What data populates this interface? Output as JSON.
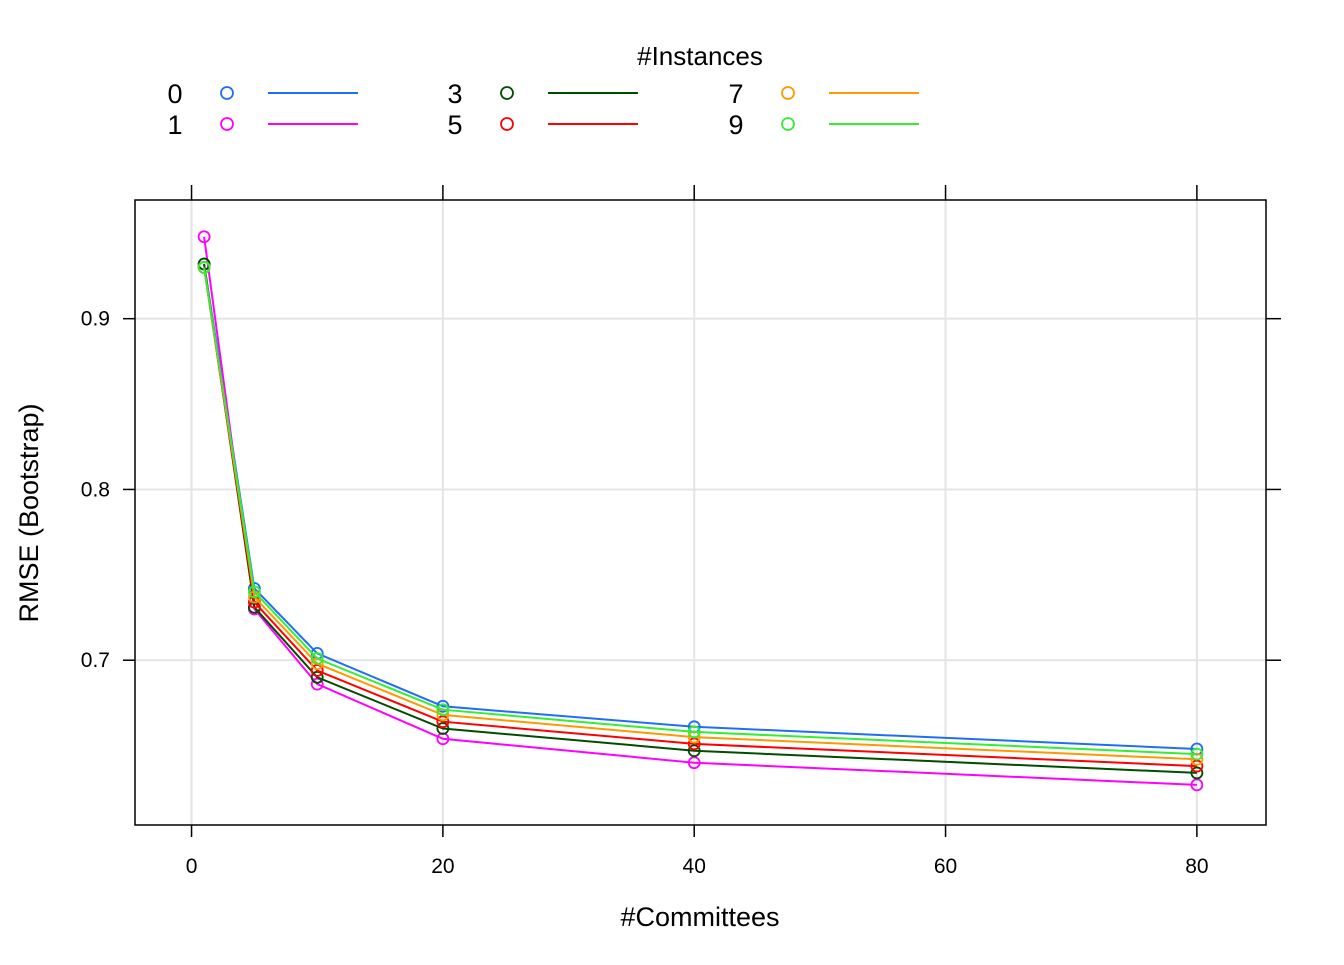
{
  "chart_data": {
    "type": "line",
    "title": "",
    "xlabel": "#Committees",
    "ylabel": "RMSE (Bootstrap)",
    "legend_title": "#Instances",
    "legend_position": "top",
    "grid": true,
    "xlim": [
      -4.5,
      85.5
    ],
    "ylim": [
      0.6035,
      0.9695
    ],
    "x_ticks": [
      0,
      20,
      40,
      60,
      80
    ],
    "x_tick_labels": [
      "0",
      "20",
      "40",
      "60",
      "80"
    ],
    "y_ticks": [
      0.7,
      0.8,
      0.9
    ],
    "y_tick_labels": [
      "0.7",
      "0.8",
      "0.9"
    ],
    "x": [
      1,
      5,
      10,
      20,
      40,
      80
    ],
    "series": [
      {
        "name": "0",
        "color": "#1f6ef5",
        "values": [
          0.932,
          0.742,
          0.704,
          0.673,
          0.661,
          0.648
        ]
      },
      {
        "name": "1",
        "color": "#ff00ff",
        "values": [
          0.948,
          0.73,
          0.686,
          0.654,
          0.64,
          0.627
        ]
      },
      {
        "name": "3",
        "color": "#004d00",
        "values": [
          0.932,
          0.731,
          0.69,
          0.66,
          0.647,
          0.634
        ]
      },
      {
        "name": "5",
        "color": "#ff0000",
        "values": [
          0.93,
          0.734,
          0.694,
          0.664,
          0.651,
          0.638
        ]
      },
      {
        "name": "7",
        "color": "#ff9900",
        "values": [
          0.93,
          0.737,
          0.698,
          0.668,
          0.655,
          0.642
        ]
      },
      {
        "name": "9",
        "color": "#33ee33",
        "values": [
          0.93,
          0.74,
          0.701,
          0.671,
          0.658,
          0.645
        ]
      }
    ]
  }
}
